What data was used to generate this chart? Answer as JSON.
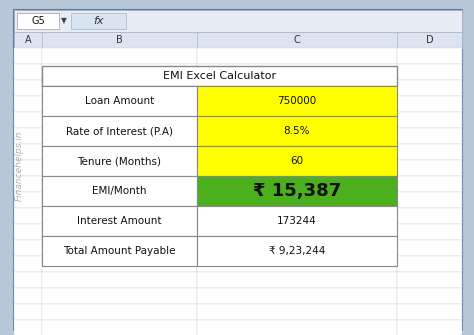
{
  "title": "EMI Excel Calculator",
  "rows": [
    {
      "label": "Loan Amount",
      "value": "750000",
      "bg_label": "#ffffff",
      "bg_value": "#ffff00"
    },
    {
      "label": "Rate of Interest (P.A)",
      "value": "8.5%",
      "bg_label": "#ffffff",
      "bg_value": "#ffff00"
    },
    {
      "label": "Tenure (Months)",
      "value": "60",
      "bg_label": "#ffffff",
      "bg_value": "#ffff00"
    },
    {
      "label": "EMI/Month",
      "value": "₹ 15,387",
      "bg_label": "#ffffff",
      "bg_value": "#4caf1e"
    },
    {
      "label": "Interest Amount",
      "value": "173244",
      "bg_label": "#ffffff",
      "bg_value": "#ffffff"
    },
    {
      "label": "Total Amount Payable",
      "value": "₹ 9,23,244",
      "bg_label": "#ffffff",
      "bg_value": "#ffffff"
    }
  ],
  "outer_bg": "#b8c8d8",
  "win_bg": "#eef2f8",
  "formula_bg": "#e8edf5",
  "col_header_bg": "#dde4ef",
  "grid_bg": "#ffffff",
  "grid_line": "#c8d0dc",
  "table_border": "#888888",
  "cell_ref": "G5",
  "watermark": "Financehelps.in",
  "col_headers": [
    "A",
    "B",
    "C",
    "D"
  ],
  "title_fontsize": 8,
  "label_fontsize": 7.5,
  "value_fontsize": 7.5,
  "emi_value_fontsize": 13
}
